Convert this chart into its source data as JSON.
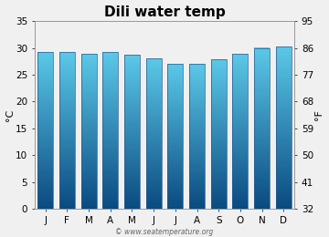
{
  "title": "Dili water temp",
  "months": [
    "J",
    "F",
    "M",
    "A",
    "M",
    "J",
    "J",
    "A",
    "S",
    "O",
    "N",
    "D"
  ],
  "temps_c": [
    29.3,
    29.2,
    28.9,
    29.2,
    28.7,
    28.0,
    27.1,
    27.1,
    27.9,
    28.9,
    30.0,
    30.3
  ],
  "ylim_c": [
    0,
    35
  ],
  "yticks_c": [
    0,
    5,
    10,
    15,
    20,
    25,
    30,
    35
  ],
  "yticks_f": [
    32,
    41,
    50,
    59,
    68,
    77,
    86,
    95
  ],
  "ylabel_left": "°C",
  "ylabel_right": "°F",
  "bar_color_top": "#5bc8e8",
  "bar_color_bottom": "#0a4a80",
  "figure_bg": "#f0f0f0",
  "plot_bg": "#f0f0f0",
  "watermark": "© www.seatemperature.org",
  "title_fontsize": 11,
  "axis_fontsize": 7.5,
  "label_fontsize": 8
}
